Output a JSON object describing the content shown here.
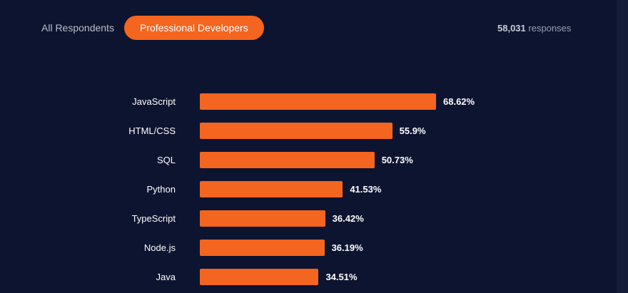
{
  "tabs": [
    {
      "label": "All Respondents",
      "active": false
    },
    {
      "label": "Professional Developers",
      "active": true
    }
  ],
  "responses": {
    "count": "58,031",
    "label": "responses"
  },
  "colors": {
    "background": "#0d1430",
    "accent": "#f4651f",
    "text": "#ffffff",
    "muted": "#b9bec9"
  },
  "chart_data": {
    "type": "bar",
    "orientation": "horizontal",
    "categories": [
      "JavaScript",
      "HTML/CSS",
      "SQL",
      "Python",
      "TypeScript",
      "Node.js",
      "Java"
    ],
    "values": [
      68.62,
      55.9,
      50.73,
      41.53,
      36.42,
      36.19,
      34.51
    ],
    "value_labels": [
      "68.62%",
      "55.9%",
      "50.73%",
      "41.53%",
      "36.42%",
      "36.19%",
      "34.51%"
    ],
    "title": "",
    "xlabel": "",
    "ylabel": "",
    "xlim": [
      0,
      100
    ]
  }
}
